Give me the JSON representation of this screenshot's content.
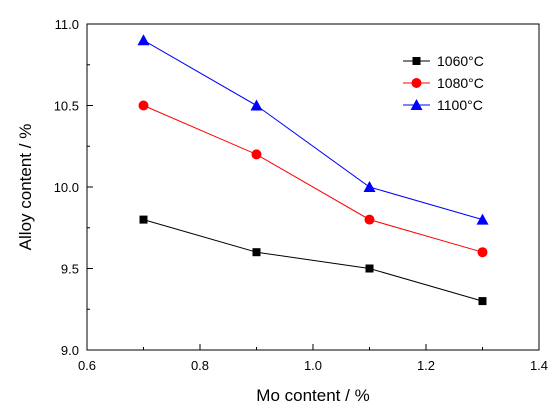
{
  "chart_data": {
    "type": "line",
    "title": "",
    "xlabel": "Mo content / %",
    "ylabel": "Alloy content / %",
    "xlim": [
      0.6,
      1.4
    ],
    "ylim": [
      9.0,
      11.0
    ],
    "xticks": [
      "0.6",
      "0.8",
      "1.0",
      "1.2",
      "1.4"
    ],
    "xticks_minor": [
      "0.7",
      "0.9",
      "1.1",
      "1.3"
    ],
    "yticks": [
      "9.0",
      "9.5",
      "10.0",
      "10.5",
      "11.0"
    ],
    "grid": false,
    "legend_position": "top-right",
    "x": [
      0.7,
      0.9,
      1.1,
      1.3
    ],
    "series": [
      {
        "name": "1060°C",
        "values": [
          9.8,
          9.6,
          9.5,
          9.3
        ],
        "color": "#000000",
        "marker": "square"
      },
      {
        "name": "1080°C",
        "values": [
          10.5,
          10.2,
          9.8,
          9.6
        ],
        "color": "#ff0000",
        "marker": "circle"
      },
      {
        "name": "1100°C",
        "values": [
          10.9,
          10.5,
          10.0,
          9.8
        ],
        "color": "#0000ff",
        "marker": "triangle"
      }
    ]
  }
}
